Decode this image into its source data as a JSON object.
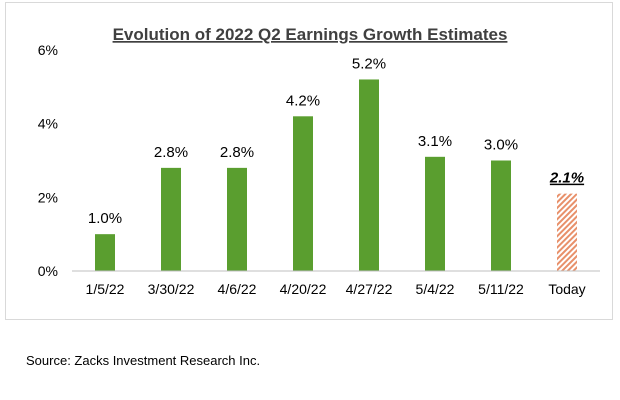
{
  "chart_data": {
    "type": "bar",
    "title": "Evolution of 2022 Q2 Earnings Growth Estimates",
    "categories": [
      "1/5/22",
      "3/30/22",
      "4/6/22",
      "4/20/22",
      "4/27/22",
      "5/4/22",
      "5/11/22",
      "Today"
    ],
    "values": [
      1.0,
      2.8,
      2.8,
      4.2,
      5.2,
      3.1,
      3.0,
      2.1
    ],
    "data_labels": [
      "1.0%",
      "2.8%",
      "2.8%",
      "4.2%",
      "5.2%",
      "3.1%",
      "3.0%",
      "2.1%"
    ],
    "y_ticks": [
      0,
      2,
      4,
      6
    ],
    "y_tick_labels": [
      "0%",
      "2%",
      "4%",
      "6%"
    ],
    "ylim": [
      0,
      6
    ],
    "xlabel": "",
    "ylabel": "",
    "grid": false,
    "legend": "none",
    "highlight_category": "Today",
    "colors": {
      "bar": "#5a9e2f",
      "highlight": "#e8906a",
      "axis": "#bfbfbf",
      "text": "#000000"
    }
  },
  "source": "Source: Zacks Investment Research Inc."
}
